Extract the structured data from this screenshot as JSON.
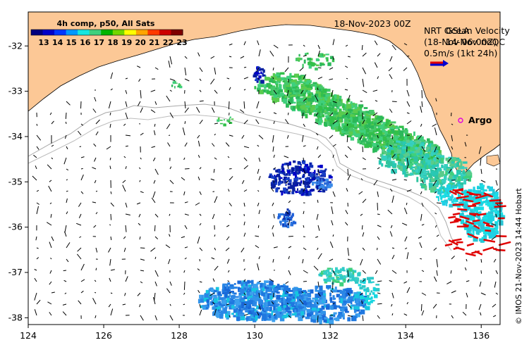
{
  "map": {
    "date_label": "18-Nov-2023 00Z",
    "source_lines": [
      "NRT Ocean Velocity",
      "(18-Nov 06:00Z)"
    ],
    "overlap_lines": [
      "GSLA",
      "14-Nov",
      "noQC"
    ],
    "speed_scale_label": "0.5m/s (1kt 24h)",
    "argo_label": "Argo",
    "credit": "© IMOS 21-Nov-2023 14:44 Hobart",
    "colors": {
      "land": "#fcc896",
      "cold": "#1f78e0",
      "mid": "#29b6c8",
      "warm": "#3cb83c",
      "current_vector": "#e00000",
      "argo": "#e000e0"
    }
  },
  "colorbar": {
    "title": "4h comp, p50, All Sats",
    "ticks": [
      "13",
      "14",
      "15",
      "16",
      "17",
      "18",
      "19",
      "20",
      "21",
      "22",
      "23"
    ],
    "colors": [
      "#00007f",
      "#0000c8",
      "#0036ff",
      "#0098ff",
      "#17e6e0",
      "#3fd07d",
      "#00b400",
      "#72d700",
      "#ffff00",
      "#ffa400",
      "#ff3900",
      "#cc0000",
      "#7f0000"
    ]
  },
  "axes": {
    "x": {
      "range": [
        124,
        136.5
      ],
      "ticks": [
        "124",
        "126",
        "128",
        "130",
        "132",
        "134",
        "136"
      ]
    },
    "y": {
      "range": [
        -38.15,
        -31.25
      ],
      "ticks": [
        "-32",
        "-33",
        "-34",
        "-35",
        "-36",
        "-37",
        "-38"
      ]
    }
  }
}
